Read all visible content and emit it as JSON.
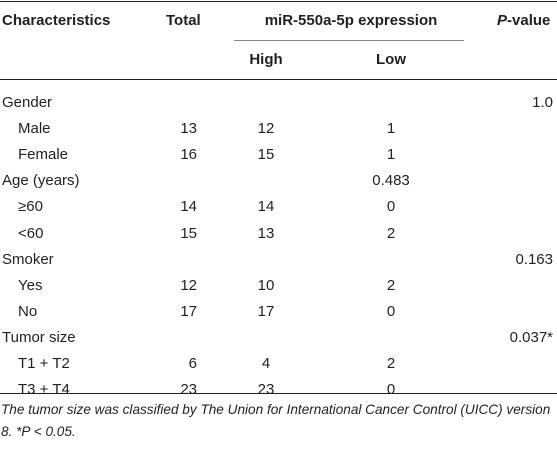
{
  "header": {
    "characteristics": "Characteristics",
    "total": "Total",
    "expression_group": "miR-550a-5p expression",
    "high": "High",
    "low": "Low",
    "p_label": "P",
    "p_suffix": "-value"
  },
  "rows": [
    {
      "label": "Gender",
      "indent": false,
      "total": "",
      "high": "",
      "low": "",
      "p": "1.0"
    },
    {
      "label": "Male",
      "indent": true,
      "total": "13",
      "high": "12",
      "low": "1",
      "p": ""
    },
    {
      "label": "Female",
      "indent": true,
      "total": "16",
      "high": "15",
      "low": "1",
      "p": ""
    },
    {
      "label": "Age (years)",
      "indent": false,
      "total": "",
      "high": "",
      "low": "0.483",
      "p": ""
    },
    {
      "label": "≥60",
      "indent": true,
      "total": "14",
      "high": "14",
      "low": "0",
      "p": ""
    },
    {
      "label": "<60",
      "indent": true,
      "total": "15",
      "high": "13",
      "low": "2",
      "p": ""
    },
    {
      "label": "Smoker",
      "indent": false,
      "total": "",
      "high": "",
      "low": "",
      "p": "0.163"
    },
    {
      "label": "Yes",
      "indent": true,
      "total": "12",
      "high": "10",
      "low": "2",
      "p": ""
    },
    {
      "label": "No",
      "indent": true,
      "total": "17",
      "high": "17",
      "low": "0",
      "p": ""
    },
    {
      "label": "Tumor size",
      "indent": false,
      "total": "",
      "high": "",
      "low": "",
      "p": "0.037*"
    },
    {
      "label": "T1 + T2",
      "indent": true,
      "total": "6",
      "high": "4",
      "low": "2",
      "p": ""
    },
    {
      "label": "T3 + T4",
      "indent": true,
      "total": "23",
      "high": "23",
      "low": "0",
      "p": ""
    }
  ],
  "footnote": "The tumor size was classified by The Union for International Cancer Control (UICC) version 8. *P < 0.05."
}
